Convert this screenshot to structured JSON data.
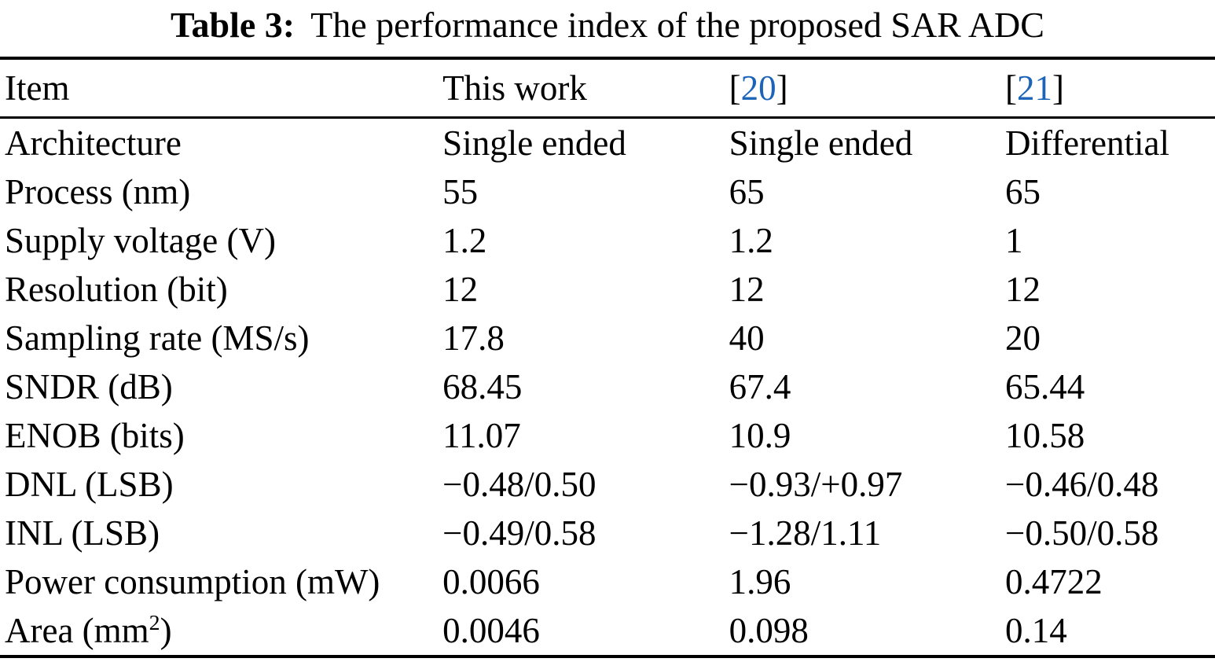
{
  "caption": {
    "label": "Table 3:",
    "text": "The performance index of the proposed SAR ADC"
  },
  "colors": {
    "citation": "#1b64b8",
    "text": "#000000",
    "rule": "#000000",
    "background": "#ffffff"
  },
  "table": {
    "headers": [
      {
        "name": "column-header-item",
        "parts": [
          "Item"
        ]
      },
      {
        "name": "column-header-this-work",
        "parts": [
          "This work"
        ]
      },
      {
        "name": "column-header-ref-20",
        "parts": [
          "[",
          {
            "cite": "20",
            "name": "citation-link-20"
          },
          "]"
        ]
      },
      {
        "name": "column-header-ref-21",
        "parts": [
          "[",
          {
            "cite": "21",
            "name": "citation-link-21"
          },
          "]"
        ]
      }
    ],
    "rows": [
      {
        "cells": [
          [
            "Architecture"
          ],
          [
            "Single ended"
          ],
          [
            "Single ended"
          ],
          [
            "Differential"
          ]
        ]
      },
      {
        "cells": [
          [
            "Process (nm)"
          ],
          [
            "55"
          ],
          [
            "65"
          ],
          [
            "65"
          ]
        ]
      },
      {
        "cells": [
          [
            "Supply voltage (V)"
          ],
          [
            "1.2"
          ],
          [
            "1.2"
          ],
          [
            "1"
          ]
        ]
      },
      {
        "cells": [
          [
            "Resolution (bit)"
          ],
          [
            "12"
          ],
          [
            "12"
          ],
          [
            "12"
          ]
        ]
      },
      {
        "cells": [
          [
            "Sampling rate (MS/s)"
          ],
          [
            "17.8"
          ],
          [
            "40"
          ],
          [
            "20"
          ]
        ]
      },
      {
        "cells": [
          [
            "SNDR (dB)"
          ],
          [
            "68.45"
          ],
          [
            "67.4"
          ],
          [
            "65.44"
          ]
        ]
      },
      {
        "cells": [
          [
            "ENOB (bits)"
          ],
          [
            "11.07"
          ],
          [
            "10.9"
          ],
          [
            "10.58"
          ]
        ]
      },
      {
        "cells": [
          [
            "DNL (LSB)"
          ],
          [
            "−0.48/0.50"
          ],
          [
            "−0.93/+0.97"
          ],
          [
            "−0.46/0.48"
          ]
        ]
      },
      {
        "cells": [
          [
            "INL (LSB)"
          ],
          [
            "−0.49/0.58"
          ],
          [
            "−1.28/1.11"
          ],
          [
            "−0.50/0.58"
          ]
        ]
      },
      {
        "cells": [
          [
            "Power consumption (mW)"
          ],
          [
            "0.0066"
          ],
          [
            "1.96"
          ],
          [
            "0.4722"
          ]
        ]
      },
      {
        "cells": [
          [
            "Area (mm",
            {
              "sup": "2"
            },
            ")"
          ],
          [
            "0.0046"
          ],
          [
            "0.098"
          ],
          [
            "0.14"
          ]
        ]
      }
    ]
  }
}
